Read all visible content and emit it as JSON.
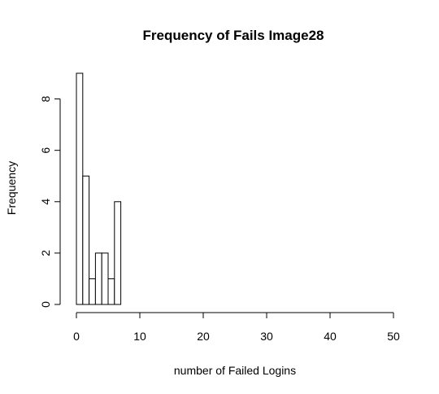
{
  "chart_data": {
    "type": "bar",
    "title": "Frequency of Fails Image28",
    "xlabel": "number of Failed Logins",
    "ylabel": "Frequency",
    "xlim": [
      0,
      50
    ],
    "ylim": [
      0,
      9
    ],
    "x_ticks": [
      0,
      10,
      20,
      30,
      40,
      50
    ],
    "y_ticks": [
      0,
      2,
      4,
      6,
      8
    ],
    "bin_width": 1,
    "bins": [
      {
        "start": 0,
        "end": 1,
        "count": 9
      },
      {
        "start": 1,
        "end": 2,
        "count": 5
      },
      {
        "start": 2,
        "end": 3,
        "count": 1
      },
      {
        "start": 3,
        "end": 4,
        "count": 2
      },
      {
        "start": 4,
        "end": 5,
        "count": 2
      },
      {
        "start": 5,
        "end": 6,
        "count": 1
      },
      {
        "start": 6,
        "end": 7,
        "count": 4
      }
    ],
    "grid": false,
    "legend": "none"
  }
}
